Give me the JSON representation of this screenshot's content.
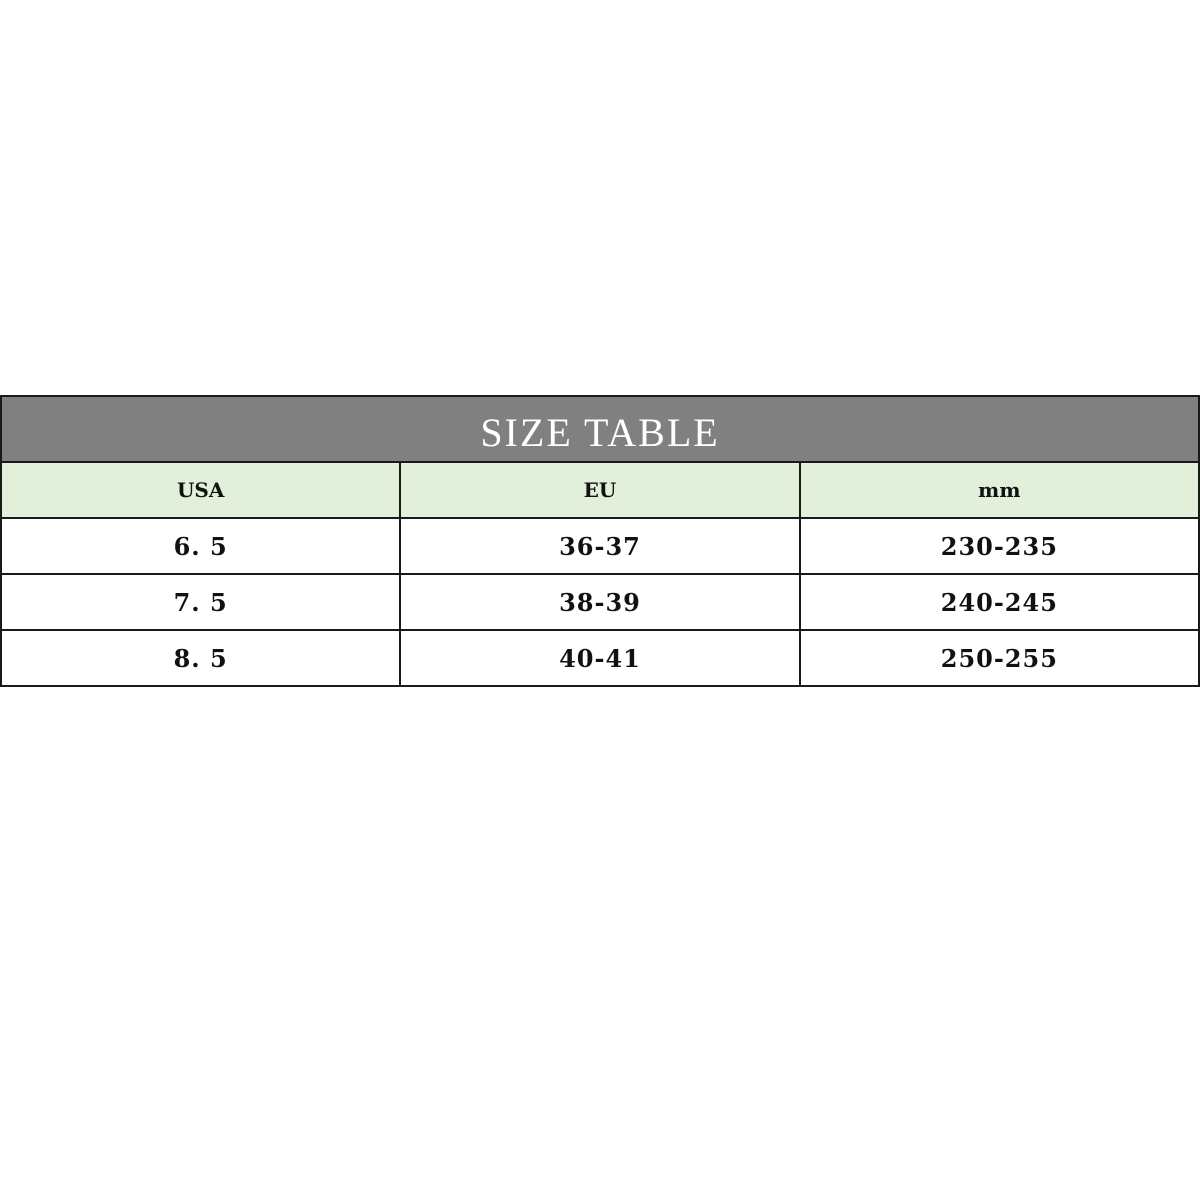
{
  "title": "SIZE TABLE",
  "columns": [
    "USA",
    "EU",
    "mm"
  ],
  "rows": [
    [
      "6. 5",
      "36-37",
      "230-235"
    ],
    [
      "7. 5",
      "38-39",
      "240-245"
    ],
    [
      "8. 5",
      "40-41",
      "250-255"
    ]
  ],
  "colors": {
    "title_bg": "#808080",
    "header_bg": "#e2efda"
  }
}
